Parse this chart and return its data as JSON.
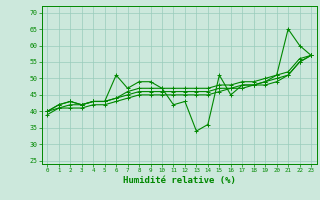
{
  "xlabel": "Humidité relative (%)",
  "xlim": [
    -0.5,
    23.5
  ],
  "ylim": [
    24,
    72
  ],
  "yticks": [
    25,
    30,
    35,
    40,
    45,
    50,
    55,
    60,
    65,
    70
  ],
  "xticks": [
    0,
    1,
    2,
    3,
    4,
    5,
    6,
    7,
    8,
    9,
    10,
    11,
    12,
    13,
    14,
    15,
    16,
    17,
    18,
    19,
    20,
    21,
    22,
    23
  ],
  "bg_color": "#cce8dc",
  "grid_color": "#99ccbb",
  "line_color": "#008800",
  "line1": [
    40,
    42,
    43,
    42,
    43,
    43,
    51,
    47,
    49,
    49,
    47,
    42,
    43,
    34,
    36,
    51,
    45,
    48,
    48,
    49,
    51,
    65,
    60,
    57
  ],
  "line2": [
    40,
    42,
    43,
    42,
    43,
    43,
    44,
    46,
    47,
    47,
    47,
    47,
    47,
    47,
    47,
    48,
    48,
    49,
    49,
    50,
    51,
    52,
    56,
    57
  ],
  "line3": [
    40,
    41,
    42,
    42,
    43,
    43,
    44,
    45,
    46,
    46,
    46,
    46,
    46,
    46,
    46,
    47,
    47,
    48,
    48,
    49,
    50,
    51,
    55,
    57
  ],
  "line4": [
    39,
    41,
    41,
    41,
    42,
    42,
    43,
    44,
    45,
    45,
    45,
    45,
    45,
    45,
    45,
    46,
    47,
    47,
    48,
    48,
    49,
    51,
    55,
    57
  ]
}
